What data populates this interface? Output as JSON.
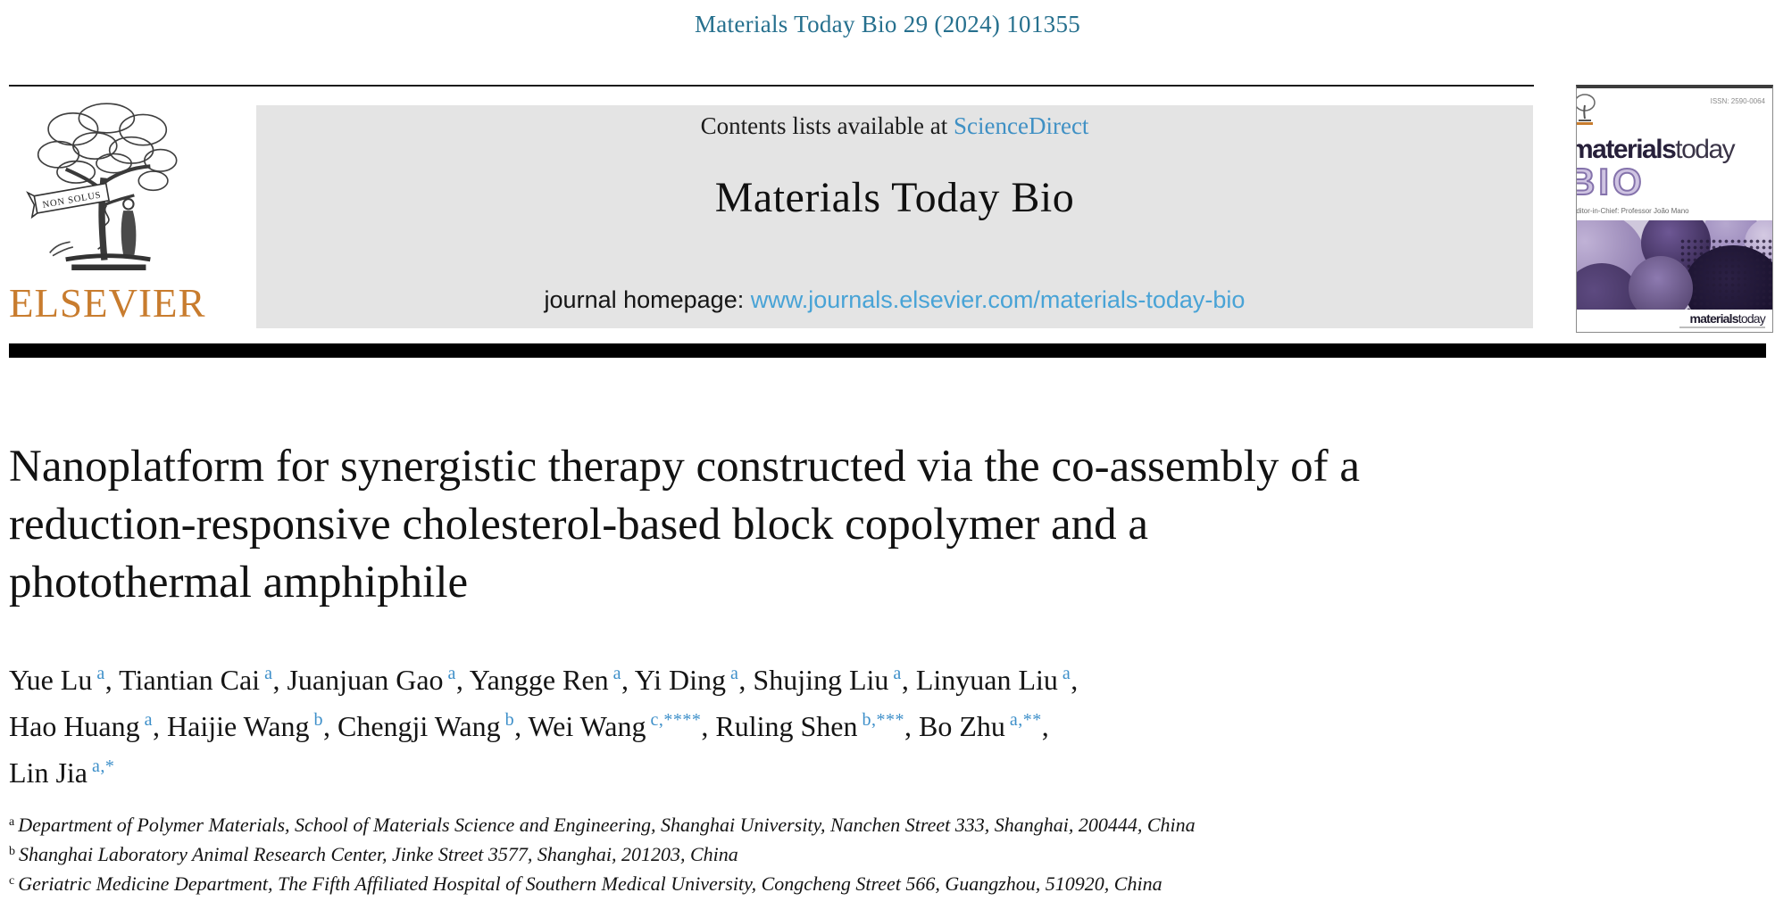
{
  "journal_ref": "Materials Today Bio 29 (2024) 101355",
  "masthead": {
    "contents_prefix": "Contents lists available at ",
    "sciencedirect": "ScienceDirect",
    "journal_name": "Materials Today Bio",
    "homepage_prefix": "journal homepage: ",
    "homepage_url": "www.journals.elsevier.com/materials-today-bio",
    "elsevier_wordmark": "ELSEVIER",
    "non_solus": "NON SOLUS"
  },
  "cover": {
    "issn": "ISSN: 2590-0064",
    "brand_bold": "materials",
    "brand_light": "today",
    "bio": "BIO",
    "editor_line": "Editor-in-Chief: Professor João Mano"
  },
  "article": {
    "title": "Nanoplatform for synergistic therapy constructed via the co-assembly of a reduction-responsive cholesterol-based block copolymer and a photothermal amphiphile",
    "title_lines": [
      "Nanoplatform for synergistic therapy constructed via the co-assembly of a",
      "reduction-responsive cholesterol-based block copolymer and a",
      "photothermal amphiphile"
    ],
    "authors": [
      {
        "name": "Yue Lu",
        "sup": "a"
      },
      {
        "name": "Tiantian Cai",
        "sup": "a"
      },
      {
        "name": "Juanjuan Gao",
        "sup": "a"
      },
      {
        "name": "Yangge Ren",
        "sup": "a"
      },
      {
        "name": "Yi Ding",
        "sup": "a"
      },
      {
        "name": "Shujing Liu",
        "sup": "a"
      },
      {
        "name": "Linyuan Liu",
        "sup": "a",
        "break_after": true
      },
      {
        "name": "Hao Huang",
        "sup": "a"
      },
      {
        "name": "Haijie Wang",
        "sup": "b"
      },
      {
        "name": "Chengji Wang",
        "sup": "b"
      },
      {
        "name": "Wei Wang",
        "sup": "c,****"
      },
      {
        "name": "Ruling Shen",
        "sup": "b,***"
      },
      {
        "name": "Bo Zhu",
        "sup": "a,**",
        "break_after": true
      },
      {
        "name": "Lin Jia",
        "sup": "a,*"
      }
    ],
    "affiliations": [
      {
        "sup": "a",
        "text": "Department of Polymer Materials, School of Materials Science and Engineering, Shanghai University, Nanchen Street 333, Shanghai, 200444, China"
      },
      {
        "sup": "b",
        "text": "Shanghai Laboratory Animal Research Center, Jinke Street 3577, Shanghai, 201203, China"
      },
      {
        "sup": "c",
        "text": "Geriatric Medicine Department, The Fifth Affiliated Hospital of Southern Medical University, Congcheng Street 566, Guangzhou, 510920, China"
      }
    ]
  },
  "colors": {
    "journal_ref_teal": "#26708e",
    "sciencedirect_blue": "#3f90c4",
    "homepage_url_blue": "#48a3d6",
    "author_sup_blue": "#3d8fc9",
    "elsevier_orange": "#c87c2e",
    "masthead_gray": "#e4e4e4",
    "cover_purple": "#8472ab",
    "divider_black": "#000000"
  }
}
